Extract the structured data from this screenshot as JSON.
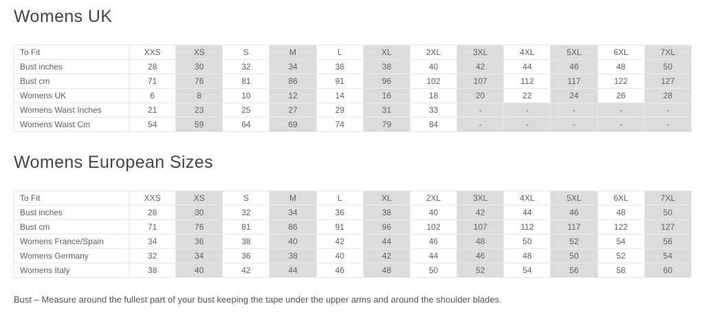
{
  "colors": {
    "shaded_cell": "#dcdcdc",
    "table_border": "#e9e9e9",
    "table_text": "#606164",
    "heading_text": "#454547"
  },
  "tables": [
    {
      "title": "Womens UK",
      "header": [
        "To Fit",
        "XXS",
        "XS",
        "S",
        "M",
        "L",
        "XL",
        "2XL",
        "3XL",
        "4XL",
        "5XL",
        "6XL",
        "7XL"
      ],
      "rows": [
        {
          "label": "Bust inches",
          "values": [
            "28",
            "30",
            "32",
            "34",
            "36",
            "38",
            "40",
            "42",
            "44",
            "46",
            "48",
            "50"
          ]
        },
        {
          "label": "Bust cm",
          "values": [
            "71",
            "76",
            "81",
            "86",
            "91",
            "96",
            "102",
            "107",
            "112",
            "117",
            "122",
            "127"
          ]
        },
        {
          "label": "Womens UK",
          "values": [
            "6",
            "8",
            "10",
            "12",
            "14",
            "16",
            "18",
            "20",
            "22",
            "24",
            "26",
            "28"
          ]
        },
        {
          "label": "Womens Waist Inches",
          "values": [
            "21",
            "23",
            "25",
            "27",
            "29",
            "31",
            "33",
            "-",
            "-",
            "-",
            "-",
            "-"
          ]
        },
        {
          "label": "Womens Waist Cm",
          "values": [
            "54",
            "59",
            "64",
            "69",
            "74",
            "79",
            "84",
            "-",
            "-",
            "-",
            "-",
            "-"
          ]
        }
      ]
    },
    {
      "title": "Womens European Sizes",
      "header": [
        "To Fit",
        "XXS",
        "XS",
        "S",
        "M",
        "L",
        "XL",
        "2XL",
        "3XL",
        "4XL",
        "5XL",
        "6XL",
        "7XL"
      ],
      "rows": [
        {
          "label": "Bust inches",
          "values": [
            "28",
            "30",
            "32",
            "34",
            "36",
            "38",
            "40",
            "42",
            "44",
            "46",
            "48",
            "50"
          ]
        },
        {
          "label": "Bust cm",
          "values": [
            "71",
            "76",
            "81",
            "86",
            "91",
            "96",
            "102",
            "107",
            "112",
            "117",
            "122",
            "127"
          ]
        },
        {
          "label": "Womens France/Spain",
          "values": [
            "34",
            "36",
            "38",
            "40",
            "42",
            "44",
            "46",
            "48",
            "50",
            "52",
            "54",
            "56"
          ]
        },
        {
          "label": "Womens Germany",
          "values": [
            "32",
            "34",
            "36",
            "38",
            "40",
            "42",
            "44",
            "46",
            "48",
            "50",
            "52",
            "54"
          ]
        },
        {
          "label": "Womens Italy",
          "values": [
            "38",
            "40",
            "42",
            "44",
            "46",
            "48",
            "50",
            "52",
            "54",
            "56",
            "58",
            "60"
          ]
        }
      ]
    }
  ],
  "note": "Bust – Measure around the fullest part of your bust keeping the tape under the upper arms and around the shoulder blades."
}
